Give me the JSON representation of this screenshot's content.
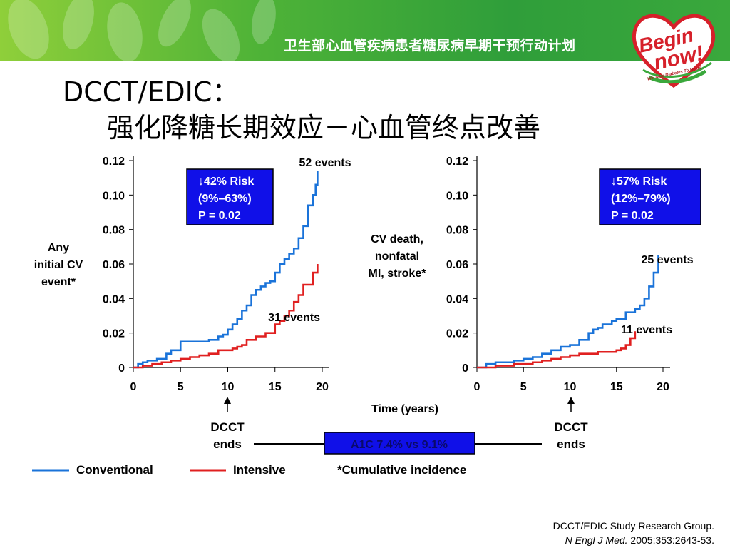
{
  "header": {
    "banner_title": "卫生部心血管疾病患者糖尿病早期干预行动计划",
    "logo_text_1": "Begin",
    "logo_text_2": "now!",
    "logo_tagline": "We Take Diabetes To Heart",
    "brand_colors": {
      "banner": "#3aa83c",
      "logo": "#d6202a"
    }
  },
  "slide": {
    "title_line1": "DCCT/EDIC：",
    "title_line2": "强化降糖长期效应－心血管终点改善"
  },
  "legend": {
    "conventional": "Conventional",
    "intensive": "Intensive",
    "note": "*Cumulative incidence"
  },
  "shared": {
    "xlabel": "Time (years)",
    "a1c_label": "A1C 7.4% vs 9.1%",
    "dcct_ends": [
      "DCCT",
      "ends"
    ]
  },
  "citation": {
    "line1": "DCCT/EDIC Study Research Group.",
    "journal": "N Engl J Med.",
    "ref": " 2005;353:2643-53."
  },
  "chart_data": [
    {
      "type": "line",
      "ylabel": [
        "Any",
        "initial CV",
        "event*"
      ],
      "xticks": [
        "0",
        "5",
        "10",
        "15",
        "20"
      ],
      "yticks": [
        "0",
        "0.02",
        "0.04",
        "0.06",
        "0.08",
        "0.10",
        "0.12"
      ],
      "xlim": [
        0,
        20
      ],
      "ylim": [
        0,
        0.12
      ],
      "risk_box": [
        "42% Risk",
        "(9%–63%)",
        "P = 0.02"
      ],
      "annotations": [
        {
          "text": "52 events",
          "series": "Conventional"
        },
        {
          "text": "31 events",
          "series": "Intensive"
        }
      ],
      "series": [
        {
          "name": "Conventional",
          "color": "#1a73d9",
          "x": [
            0,
            0.5,
            1,
            1.5,
            2.5,
            3.5,
            4,
            5,
            6,
            7,
            8,
            9,
            9.5,
            10,
            10.5,
            11,
            11.5,
            12,
            12.5,
            13,
            13.5,
            14,
            14.5,
            15,
            15.5,
            16,
            16.5,
            17,
            17.5,
            18,
            18.5,
            19,
            19.3,
            19.5
          ],
          "y": [
            0,
            0.002,
            0.003,
            0.004,
            0.005,
            0.008,
            0.01,
            0.015,
            0.015,
            0.015,
            0.016,
            0.018,
            0.019,
            0.022,
            0.025,
            0.028,
            0.033,
            0.036,
            0.042,
            0.045,
            0.047,
            0.049,
            0.05,
            0.055,
            0.06,
            0.063,
            0.066,
            0.069,
            0.075,
            0.082,
            0.094,
            0.1,
            0.106,
            0.114
          ]
        },
        {
          "name": "Intensive",
          "color": "#e02020",
          "x": [
            0,
            1,
            2,
            3,
            4,
            5,
            6,
            7,
            8,
            9,
            10,
            10.5,
            11,
            11.5,
            12,
            13,
            14,
            15,
            15.5,
            16,
            16.5,
            17,
            17.5,
            18,
            19,
            19.5
          ],
          "y": [
            0,
            0.001,
            0.002,
            0.003,
            0.004,
            0.005,
            0.006,
            0.007,
            0.008,
            0.01,
            0.01,
            0.011,
            0.012,
            0.013,
            0.016,
            0.018,
            0.02,
            0.025,
            0.027,
            0.03,
            0.033,
            0.038,
            0.042,
            0.048,
            0.055,
            0.06
          ]
        }
      ]
    },
    {
      "type": "line",
      "ylabel": [
        "CV death,",
        "nonfatal",
        "MI, stroke*"
      ],
      "xticks": [
        "0",
        "5",
        "10",
        "15",
        "20"
      ],
      "yticks": [
        "0",
        "0.02",
        "0.04",
        "0.06",
        "0.08",
        "0.10",
        "0.12"
      ],
      "xlim": [
        0,
        20
      ],
      "ylim": [
        0,
        0.12
      ],
      "risk_box": [
        "57% Risk",
        "(12%–79%)",
        "P = 0.02"
      ],
      "annotations": [
        {
          "text": "25 events",
          "series": "Conventional"
        },
        {
          "text": "11 events",
          "series": "Intensive"
        }
      ],
      "series": [
        {
          "name": "Conventional",
          "color": "#1a73d9",
          "x": [
            0,
            1,
            2,
            3,
            4,
            5,
            6,
            7,
            8,
            9,
            10,
            11,
            12,
            12.5,
            13,
            13.5,
            14,
            14.5,
            15,
            16,
            17,
            17.5,
            18,
            18.5,
            19,
            19.5
          ],
          "y": [
            0,
            0.002,
            0.003,
            0.003,
            0.004,
            0.005,
            0.006,
            0.008,
            0.01,
            0.012,
            0.013,
            0.016,
            0.02,
            0.022,
            0.023,
            0.025,
            0.025,
            0.027,
            0.028,
            0.032,
            0.034,
            0.036,
            0.04,
            0.047,
            0.055,
            0.065
          ]
        },
        {
          "name": "Intensive",
          "color": "#e02020",
          "x": [
            0,
            2,
            4,
            6,
            7,
            8,
            9,
            10,
            11,
            12,
            13,
            14,
            15,
            15.5,
            16,
            16.5,
            17
          ],
          "y": [
            0,
            0.001,
            0.002,
            0.003,
            0.004,
            0.005,
            0.006,
            0.007,
            0.008,
            0.008,
            0.009,
            0.009,
            0.01,
            0.011,
            0.013,
            0.017,
            0.021
          ]
        }
      ]
    }
  ]
}
